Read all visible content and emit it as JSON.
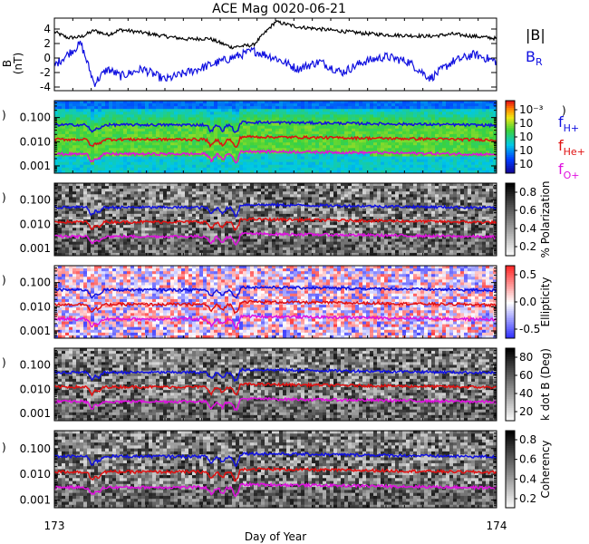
{
  "title": "ACE Mag 0020-06-21",
  "xlabel": "Day of Year",
  "colors": {
    "black": "#000000",
    "blue": "#1010e0",
    "red": "#e01010",
    "magenta": "#e010e0"
  },
  "legend": {
    "b_total": "|B|",
    "b_r_main": "B",
    "b_r_sub": "R",
    "f_h_main": "f",
    "f_h_sub": "H+",
    "f_he_main": "f",
    "f_he_sub": "He+",
    "f_o_main": "f",
    "f_o_sub": "O+"
  },
  "chart_data": [
    {
      "type": "line",
      "panel": "magnetic field",
      "ylabel": "B (nT)",
      "ylim": [
        -4.5,
        5.5
      ],
      "yticks": [
        "4",
        "2",
        "0",
        "-2",
        "-4"
      ],
      "xlim": [
        173,
        174
      ],
      "xticks": [
        "173",
        "174"
      ],
      "series": [
        {
          "name": "|B|",
          "color": "#000000",
          "x": [
            173.0,
            173.03,
            173.06,
            173.09,
            173.12,
            173.15,
            173.2,
            173.25,
            173.3,
            173.35,
            173.4,
            173.45,
            173.5,
            173.55,
            173.6,
            173.65,
            173.7,
            173.75,
            173.8,
            173.85,
            173.9,
            173.95,
            174.0
          ],
          "y": [
            3.6,
            2.8,
            2.9,
            3.8,
            3.2,
            3.9,
            3.5,
            3.0,
            2.6,
            2.7,
            1.5,
            1.8,
            5.0,
            4.3,
            4.0,
            3.7,
            3.4,
            3.2,
            3.1,
            3.0,
            3.3,
            3.0,
            2.7
          ]
        },
        {
          "name": "B_R",
          "color": "#1010e0",
          "x": [
            173.0,
            173.03,
            173.06,
            173.09,
            173.12,
            173.15,
            173.2,
            173.25,
            173.3,
            173.35,
            173.4,
            173.45,
            173.5,
            173.55,
            173.6,
            173.65,
            173.7,
            173.75,
            173.8,
            173.85,
            173.9,
            173.95,
            174.0
          ],
          "y": [
            -1.0,
            0.5,
            2.0,
            -3.5,
            -1.5,
            -2.5,
            -1.5,
            -3.0,
            -2.0,
            -1.0,
            0.0,
            1.0,
            0.0,
            -1.5,
            -0.5,
            -2.0,
            -0.5,
            0.2,
            -0.5,
            -2.8,
            -0.5,
            0.5,
            -0.5
          ]
        }
      ]
    },
    {
      "type": "heatmap",
      "panel": "power spectral density",
      "ylabel": "",
      "ylim_log": [
        0.0005,
        0.5
      ],
      "yticks": [
        "0.100",
        "0.010",
        "0.001"
      ],
      "colorbar_labels": [
        "10⁻³",
        "10",
        "10",
        "10",
        "10"
      ],
      "colorbar_title": "",
      "series": [
        {
          "name": "f_H+",
          "color": "#1010e0"
        },
        {
          "name": "f_He+",
          "color": "#e01010"
        },
        {
          "name": "f_O+",
          "color": "#e010e0"
        }
      ]
    },
    {
      "type": "heatmap",
      "panel": "polarization",
      "ylim_log": [
        0.0005,
        0.5
      ],
      "yticks": [
        "0.100",
        "0.010",
        "0.001"
      ],
      "colorbar_labels": [
        "0.8",
        "0.6",
        "0.4",
        "0.2"
      ],
      "colorbar_title": "% Polarization"
    },
    {
      "type": "heatmap",
      "panel": "ellipticity",
      "ylim_log": [
        0.0005,
        0.5
      ],
      "yticks": [
        "0.100",
        "0.010",
        "0.001"
      ],
      "colorbar_labels": [
        "0.5",
        "0.0",
        "-0.5"
      ],
      "colorbar_title": "Ellipticity"
    },
    {
      "type": "heatmap",
      "panel": "wave normal angle",
      "ylim_log": [
        0.0005,
        0.5
      ],
      "yticks": [
        "0.100",
        "0.010",
        "0.001"
      ],
      "colorbar_labels": [
        "80",
        "60",
        "40",
        "20"
      ],
      "colorbar_title": "k dot B (Deg)"
    },
    {
      "type": "heatmap",
      "panel": "coherency",
      "ylim_log": [
        0.0005,
        0.5
      ],
      "yticks": [
        "0.100",
        "0.010",
        "0.001"
      ],
      "colorbar_labels": [
        "0.8",
        "0.6",
        "0.4",
        "0.2"
      ],
      "colorbar_title": "Coherency"
    }
  ]
}
